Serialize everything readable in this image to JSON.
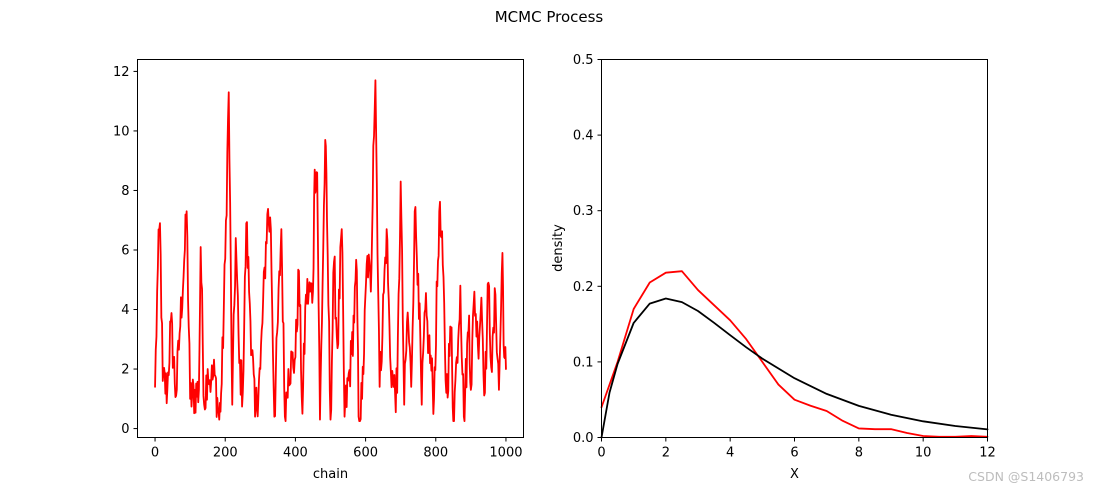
{
  "figure": {
    "title": "MCMC Process",
    "watermark": "CSDN @S1406793"
  },
  "chart_data": [
    {
      "type": "line",
      "title": "",
      "xlabel": "chain",
      "ylabel": "",
      "xlim": [
        -50,
        1050
      ],
      "ylim": [
        -0.3,
        12.4
      ],
      "xticks": [
        0,
        200,
        400,
        600,
        800,
        1000
      ],
      "yticks": [
        0,
        2,
        4,
        6,
        8,
        10,
        12
      ],
      "grid": false,
      "series": [
        {
          "color": "#ff0000",
          "keypoints": [
            [
              0,
              1.4
            ],
            [
              8,
              5.4
            ],
            [
              14,
              6.9
            ],
            [
              22,
              1.6
            ],
            [
              35,
              1.3
            ],
            [
              45,
              3.6
            ],
            [
              60,
              1.1
            ],
            [
              70,
              3.2
            ],
            [
              85,
              6.0
            ],
            [
              90,
              7.3
            ],
            [
              100,
              1.0
            ],
            [
              125,
              1.3
            ],
            [
              130,
              6.1
            ],
            [
              140,
              0.8
            ],
            [
              150,
              2.0
            ],
            [
              160,
              1.6
            ],
            [
              170,
              1.8
            ],
            [
              183,
              0.3
            ],
            [
              190,
              1.5
            ],
            [
              200,
              5.7
            ],
            [
              210,
              11.3
            ],
            [
              220,
              0.8
            ],
            [
              230,
              6.4
            ],
            [
              240,
              2.2
            ],
            [
              250,
              1.2
            ],
            [
              260,
              6.9
            ],
            [
              270,
              4.2
            ],
            [
              285,
              0.4
            ],
            [
              300,
              2.0
            ],
            [
              320,
              7.2
            ],
            [
              330,
              6.7
            ],
            [
              340,
              0.4
            ],
            [
              360,
              6.7
            ],
            [
              370,
              0.4
            ],
            [
              380,
              2.0
            ],
            [
              400,
              2.4
            ],
            [
              410,
              5.3
            ],
            [
              420,
              0.5
            ],
            [
              430,
              4.5
            ],
            [
              450,
              4.6
            ],
            [
              455,
              8.7
            ],
            [
              462,
              8.6
            ],
            [
              470,
              0.3
            ],
            [
              485,
              9.7
            ],
            [
              490,
              7.0
            ],
            [
              500,
              0.3
            ],
            [
              510,
              5.6
            ],
            [
              520,
              2.7
            ],
            [
              532,
              6.7
            ],
            [
              540,
              0.4
            ],
            [
              560,
              2.5
            ],
            [
              575,
              5.3
            ],
            [
              580,
              0.4
            ],
            [
              590,
              1.0
            ],
            [
              605,
              5.8
            ],
            [
              615,
              4.6
            ],
            [
              622,
              9.5
            ],
            [
              628,
              11.7
            ],
            [
              640,
              1.4
            ],
            [
              660,
              6.7
            ],
            [
              670,
              2.4
            ],
            [
              680,
              1.4
            ],
            [
              690,
              1.2
            ],
            [
              700,
              8.3
            ],
            [
              710,
              0.8
            ],
            [
              720,
              3.9
            ],
            [
              730,
              1.4
            ],
            [
              740,
              7.3
            ],
            [
              750,
              5.2
            ],
            [
              760,
              0.8
            ],
            [
              770,
              4.0
            ],
            [
              780,
              2.9
            ],
            [
              795,
              1.0
            ],
            [
              810,
              7.3
            ],
            [
              820,
              5.5
            ],
            [
              830,
              1.2
            ],
            [
              845,
              3.4
            ],
            [
              850,
              0.2
            ],
            [
              860,
              2.4
            ],
            [
              870,
              4.8
            ],
            [
              880,
              0.4
            ],
            [
              895,
              3.8
            ],
            [
              900,
              1.3
            ],
            [
              910,
              4.6
            ],
            [
              920,
              2.8
            ],
            [
              930,
              4.4
            ],
            [
              940,
              1.2
            ],
            [
              950,
              4.9
            ],
            [
              960,
              1.9
            ],
            [
              970,
              4.5
            ],
            [
              980,
              1.3
            ],
            [
              990,
              5.9
            ],
            [
              995,
              2.4
            ],
            [
              1000,
              2.0
            ]
          ]
        }
      ]
    },
    {
      "type": "line",
      "title": "",
      "xlabel": "X",
      "ylabel": "density",
      "xlim": [
        0,
        12
      ],
      "ylim": [
        0,
        0.5
      ],
      "xticks": [
        0,
        2,
        4,
        6,
        8,
        10,
        12
      ],
      "yticks": [
        0.0,
        0.1,
        0.2,
        0.3,
        0.4,
        0.5
      ],
      "grid": false,
      "series": [
        {
          "color": "#ff0000",
          "x": [
            0,
            0.5,
            1,
            1.5,
            2,
            2.5,
            3,
            3.5,
            4,
            4.5,
            5,
            5.5,
            6,
            6.5,
            7,
            7.5,
            8,
            8.5,
            9,
            9.5,
            10,
            10.5,
            11,
            11.5,
            12
          ],
          "y": [
            0.04,
            0.1,
            0.17,
            0.205,
            0.218,
            0.22,
            0.195,
            0.175,
            0.155,
            0.13,
            0.1,
            0.07,
            0.05,
            0.042,
            0.035,
            0.022,
            0.012,
            0.011,
            0.011,
            0.006,
            0.002,
            0.001,
            0.001,
            0.002,
            0.001
          ]
        },
        {
          "color": "#000000",
          "x": [
            0,
            0.25,
            0.5,
            1,
            1.5,
            2,
            2.5,
            3,
            3.5,
            4,
            4.5,
            5,
            6,
            7,
            8,
            9,
            10,
            11,
            12
          ],
          "y": [
            0,
            0.0595,
            0.0974,
            0.1516,
            0.1771,
            0.1839,
            0.1791,
            0.1673,
            0.1517,
            0.1353,
            0.1193,
            0.1043,
            0.0784,
            0.0577,
            0.0418,
            0.0301,
            0.0214,
            0.0152,
            0.0107
          ]
        }
      ]
    }
  ]
}
